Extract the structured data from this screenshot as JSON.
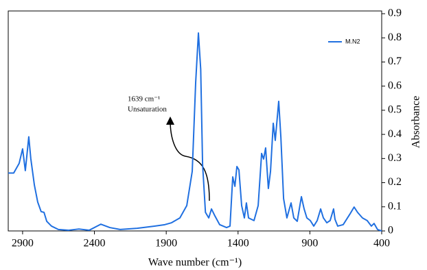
{
  "chart_data": {
    "type": "line",
    "xlabel": "Wave number (cm⁻¹)",
    "ylabel": "Absorbance",
    "annotation": [
      "1639 cm⁻¹",
      "Unsaturation"
    ],
    "xlim": [
      3000,
      400
    ],
    "xticks": [
      2900,
      2400,
      1900,
      1400,
      900,
      400
    ],
    "ylim": [
      0,
      0.9
    ],
    "yticks": [
      0,
      0.1,
      0.2,
      0.3,
      0.4,
      0.5,
      0.6,
      0.7,
      0.8,
      0.9
    ],
    "legend": "upper right",
    "x": [
      3000,
      2962,
      2924,
      2900,
      2881,
      2857,
      2843,
      2818,
      2795,
      2771,
      2751,
      2732,
      2699,
      2651,
      2579,
      2508,
      2436,
      2355,
      2293,
      2221,
      2102,
      1982,
      1910,
      1863,
      1805,
      1757,
      1719,
      1695,
      1676,
      1660,
      1647,
      1627,
      1604,
      1585,
      1561,
      1528,
      1480,
      1456,
      1437,
      1422,
      1408,
      1394,
      1375,
      1356,
      1342,
      1327,
      1289,
      1260,
      1236,
      1222,
      1208,
      1189,
      1174,
      1155,
      1141,
      1117,
      1102,
      1083,
      1060,
      1031,
      1012,
      988,
      959,
      940,
      921,
      897,
      873,
      849,
      825,
      806,
      782,
      759,
      735,
      725,
      706,
      668,
      620,
      592,
      568,
      534,
      501,
      472,
      453,
      429,
      400
    ],
    "series": [
      {
        "name": "M.N2",
        "color": "#1f6fe0",
        "values": [
          0.24,
          0.24,
          0.28,
          0.34,
          0.25,
          0.39,
          0.3,
          0.19,
          0.12,
          0.08,
          0.077,
          0.04,
          0.02,
          0.006,
          0.003,
          0.008,
          0.003,
          0.028,
          0.014,
          0.006,
          0.011,
          0.02,
          0.026,
          0.034,
          0.054,
          0.105,
          0.247,
          0.616,
          0.82,
          0.67,
          0.276,
          0.077,
          0.054,
          0.091,
          0.062,
          0.026,
          0.014,
          0.02,
          0.224,
          0.185,
          0.267,
          0.253,
          0.105,
          0.054,
          0.116,
          0.054,
          0.043,
          0.105,
          0.321,
          0.298,
          0.344,
          0.176,
          0.247,
          0.446,
          0.375,
          0.537,
          0.389,
          0.134,
          0.054,
          0.116,
          0.054,
          0.04,
          0.142,
          0.091,
          0.054,
          0.043,
          0.02,
          0.043,
          0.091,
          0.054,
          0.034,
          0.043,
          0.091,
          0.048,
          0.02,
          0.026,
          0.071,
          0.099,
          0.077,
          0.054,
          0.043,
          0.02,
          0.031,
          0.006,
          0
        ]
      }
    ]
  }
}
